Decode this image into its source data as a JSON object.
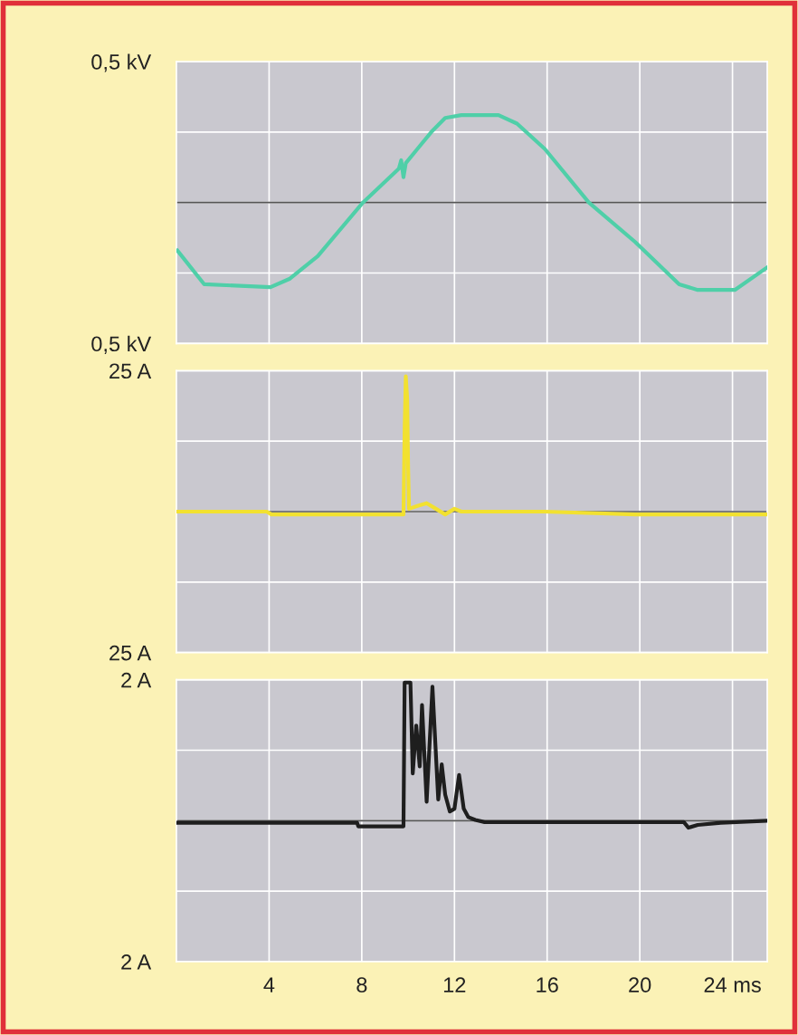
{
  "chart_data": [
    {
      "type": "line",
      "xlim": [
        0,
        25.5
      ],
      "xticks": [
        4,
        8,
        12,
        16,
        20,
        24
      ],
      "ylim": [
        -0.5,
        0.5
      ],
      "yticks": [
        {
          "value": -0.5,
          "label": "0,5 kV"
        },
        {
          "value": -0.25,
          "label": null
        },
        {
          "value": 0,
          "label": null
        },
        {
          "value": 0.25,
          "label": null
        },
        {
          "value": 0.5,
          "label": "0,5 kV"
        }
      ],
      "tick_labels": "y",
      "grid": true,
      "ref_lines": [
        {
          "axis": "y",
          "value": 0,
          "color": "#555555"
        }
      ],
      "series": [
        {
          "color": "#4fcfa8",
          "x": [
            0.04,
            1.2,
            4.06,
            4.9,
            6.1,
            8.05,
            9.6,
            9.7,
            9.8,
            9.9,
            10.4,
            11.0,
            11.6,
            12.3,
            13.9,
            14.7,
            15.9,
            17.8,
            19.8,
            21.7,
            22.5,
            24.1,
            25.5
          ],
          "values": [
            -0.17,
            -0.29,
            -0.3,
            -0.27,
            -0.19,
            0.0,
            0.12,
            0.15,
            0.09,
            0.14,
            0.19,
            0.25,
            0.3,
            0.31,
            0.31,
            0.28,
            0.19,
            0.0,
            -0.14,
            -0.29,
            -0.31,
            -0.31,
            -0.23
          ]
        }
      ]
    },
    {
      "type": "line",
      "xlim": [
        0,
        25.5
      ],
      "xticks": [
        4,
        8,
        12,
        16,
        20,
        24
      ],
      "ylim": [
        -25,
        25
      ],
      "yticks": [
        {
          "value": -25,
          "label": "25 A"
        },
        {
          "value": -12.5,
          "label": null
        },
        {
          "value": 0,
          "label": null
        },
        {
          "value": 12.5,
          "label": null
        },
        {
          "value": 25,
          "label": "25 A"
        }
      ],
      "tick_labels": "y",
      "grid": true,
      "ref_lines": [
        {
          "axis": "y",
          "value": 0,
          "color": "#555555"
        }
      ],
      "series": [
        {
          "color": "#f2e130",
          "x": [
            0.04,
            3.9,
            4.1,
            9.8,
            9.85,
            9.9,
            9.96,
            10.0,
            10.04,
            10.4,
            10.8,
            11.2,
            11.6,
            12.0,
            12.3,
            15.9,
            19.8,
            25.5
          ],
          "values": [
            0,
            0,
            -0.5,
            -0.5,
            15,
            24,
            20,
            8,
            0.5,
            1,
            1.5,
            0.5,
            -0.5,
            0.5,
            0,
            0,
            -0.5,
            -0.5
          ]
        }
      ]
    },
    {
      "type": "line",
      "xlim": [
        0,
        25.5
      ],
      "xticks": [
        4,
        8,
        12,
        16,
        20,
        {
          "value": 24,
          "label": "24 ms"
        }
      ],
      "ylim": [
        -2,
        2
      ],
      "yticks": [
        {
          "value": -2,
          "label": "2 A"
        },
        {
          "value": -1,
          "label": null
        },
        {
          "value": 0,
          "label": null
        },
        {
          "value": 1,
          "label": null
        },
        {
          "value": 2,
          "label": "2 A"
        }
      ],
      "grid": true,
      "ref_lines": [
        {
          "axis": "y",
          "value": 0,
          "color": "#555555"
        }
      ],
      "series": [
        {
          "color": "#1e1e1e",
          "x": [
            0.04,
            7.8,
            7.85,
            9.8,
            9.85,
            10.1,
            10.2,
            10.35,
            10.5,
            10.6,
            10.8,
            11.05,
            11.3,
            11.45,
            11.6,
            11.8,
            12.0,
            12.2,
            12.4,
            12.6,
            12.9,
            13.3,
            13.5,
            21.9,
            22.1,
            22.5,
            23.5,
            25.5
          ],
          "values": [
            -0.03,
            -0.03,
            -0.08,
            -0.08,
            1.96,
            1.96,
            0.67,
            1.35,
            0.77,
            1.64,
            0.27,
            1.9,
            0.3,
            0.8,
            0.37,
            0.13,
            0.17,
            0.65,
            0.17,
            0.05,
            0.01,
            -0.02,
            -0.02,
            -0.02,
            -0.1,
            -0.06,
            -0.03,
            0.0
          ]
        }
      ]
    }
  ]
}
